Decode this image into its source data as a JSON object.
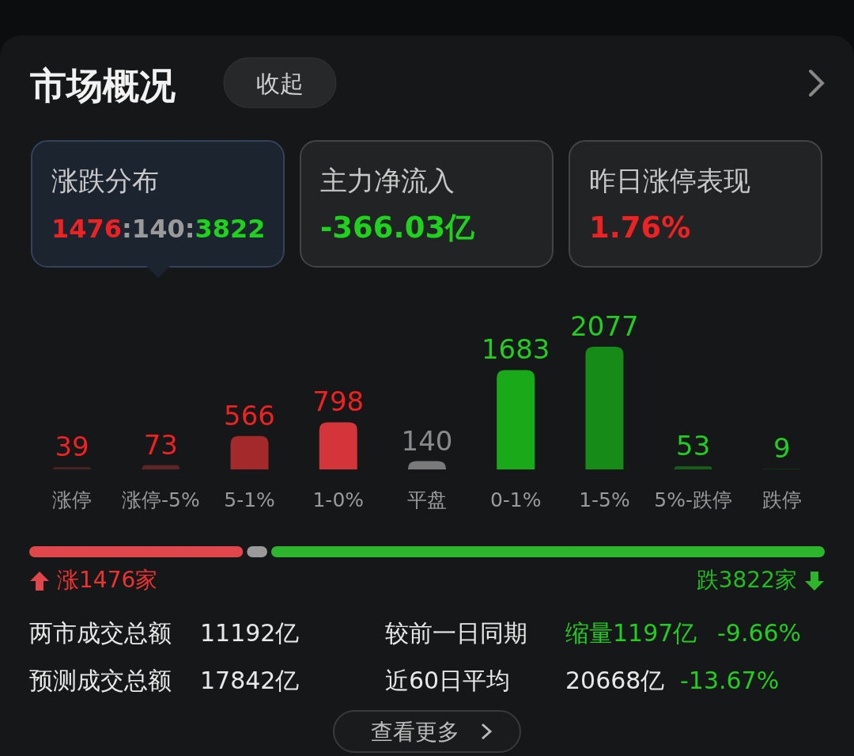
{
  "chart_data": [
    {
      "type": "other",
      "title": "市场概况",
      "annotations": [
        "收起",
        "涨跌分布",
        "1476:140:3822",
        "主力净流入",
        "-366.03亿",
        "昨日涨停表现",
        "1.76%"
      ]
    },
    {
      "type": "bar",
      "categories": [
        "涨停",
        "涨停-5%",
        "5-1%",
        "1-0%",
        "平盘",
        "0-1%",
        "1-5%",
        "5%-跌停",
        "跌停"
      ],
      "values": [
        39,
        73,
        566,
        798,
        140,
        1683,
        2077,
        53,
        9
      ],
      "colors": [
        "#4a2424",
        "#5c2626",
        "#a3292b",
        "#d4353a",
        "#7a7a7a",
        "#19a919",
        "#178b17",
        "#175d17",
        "#153d15"
      ],
      "data_labels": true,
      "tick_labels": "x",
      "annotations": [
        "涨1476家",
        "跌3822家"
      ]
    },
    {
      "type": "other",
      "annotations": [
        "两市成交总额",
        "11192亿",
        "较前一日同期",
        "缩量1197亿",
        "-9.66%",
        "预测成交总额",
        "17842亿",
        "近60日平均",
        "20668亿",
        "-13.67%",
        "查看更多"
      ]
    }
  ]
}
